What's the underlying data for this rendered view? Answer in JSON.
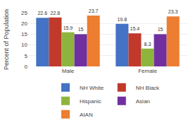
{
  "chart_data": {
    "type": "bar",
    "categories": [
      "Male",
      "Female"
    ],
    "series": [
      {
        "name": "NH White",
        "color": "#4472c4",
        "values": [
          22.6,
          19.8
        ]
      },
      {
        "name": "NH Black",
        "color": "#c0392b",
        "values": [
          22.8,
          15.4
        ]
      },
      {
        "name": "Hispanic",
        "color": "#8db53d",
        "values": [
          15.9,
          8.3
        ]
      },
      {
        "name": "Asian",
        "color": "#7030a0",
        "values": [
          15,
          15
        ]
      },
      {
        "name": "AIAN",
        "color": "#ed7d31",
        "values": [
          23.7,
          23.3
        ]
      }
    ],
    "ylabel": "Percent of Population",
    "ylim": [
      0,
      25
    ],
    "yticks": [
      0,
      5,
      10,
      15,
      20,
      25
    ],
    "grid": true,
    "legend": "bottom",
    "data_labels": true
  }
}
